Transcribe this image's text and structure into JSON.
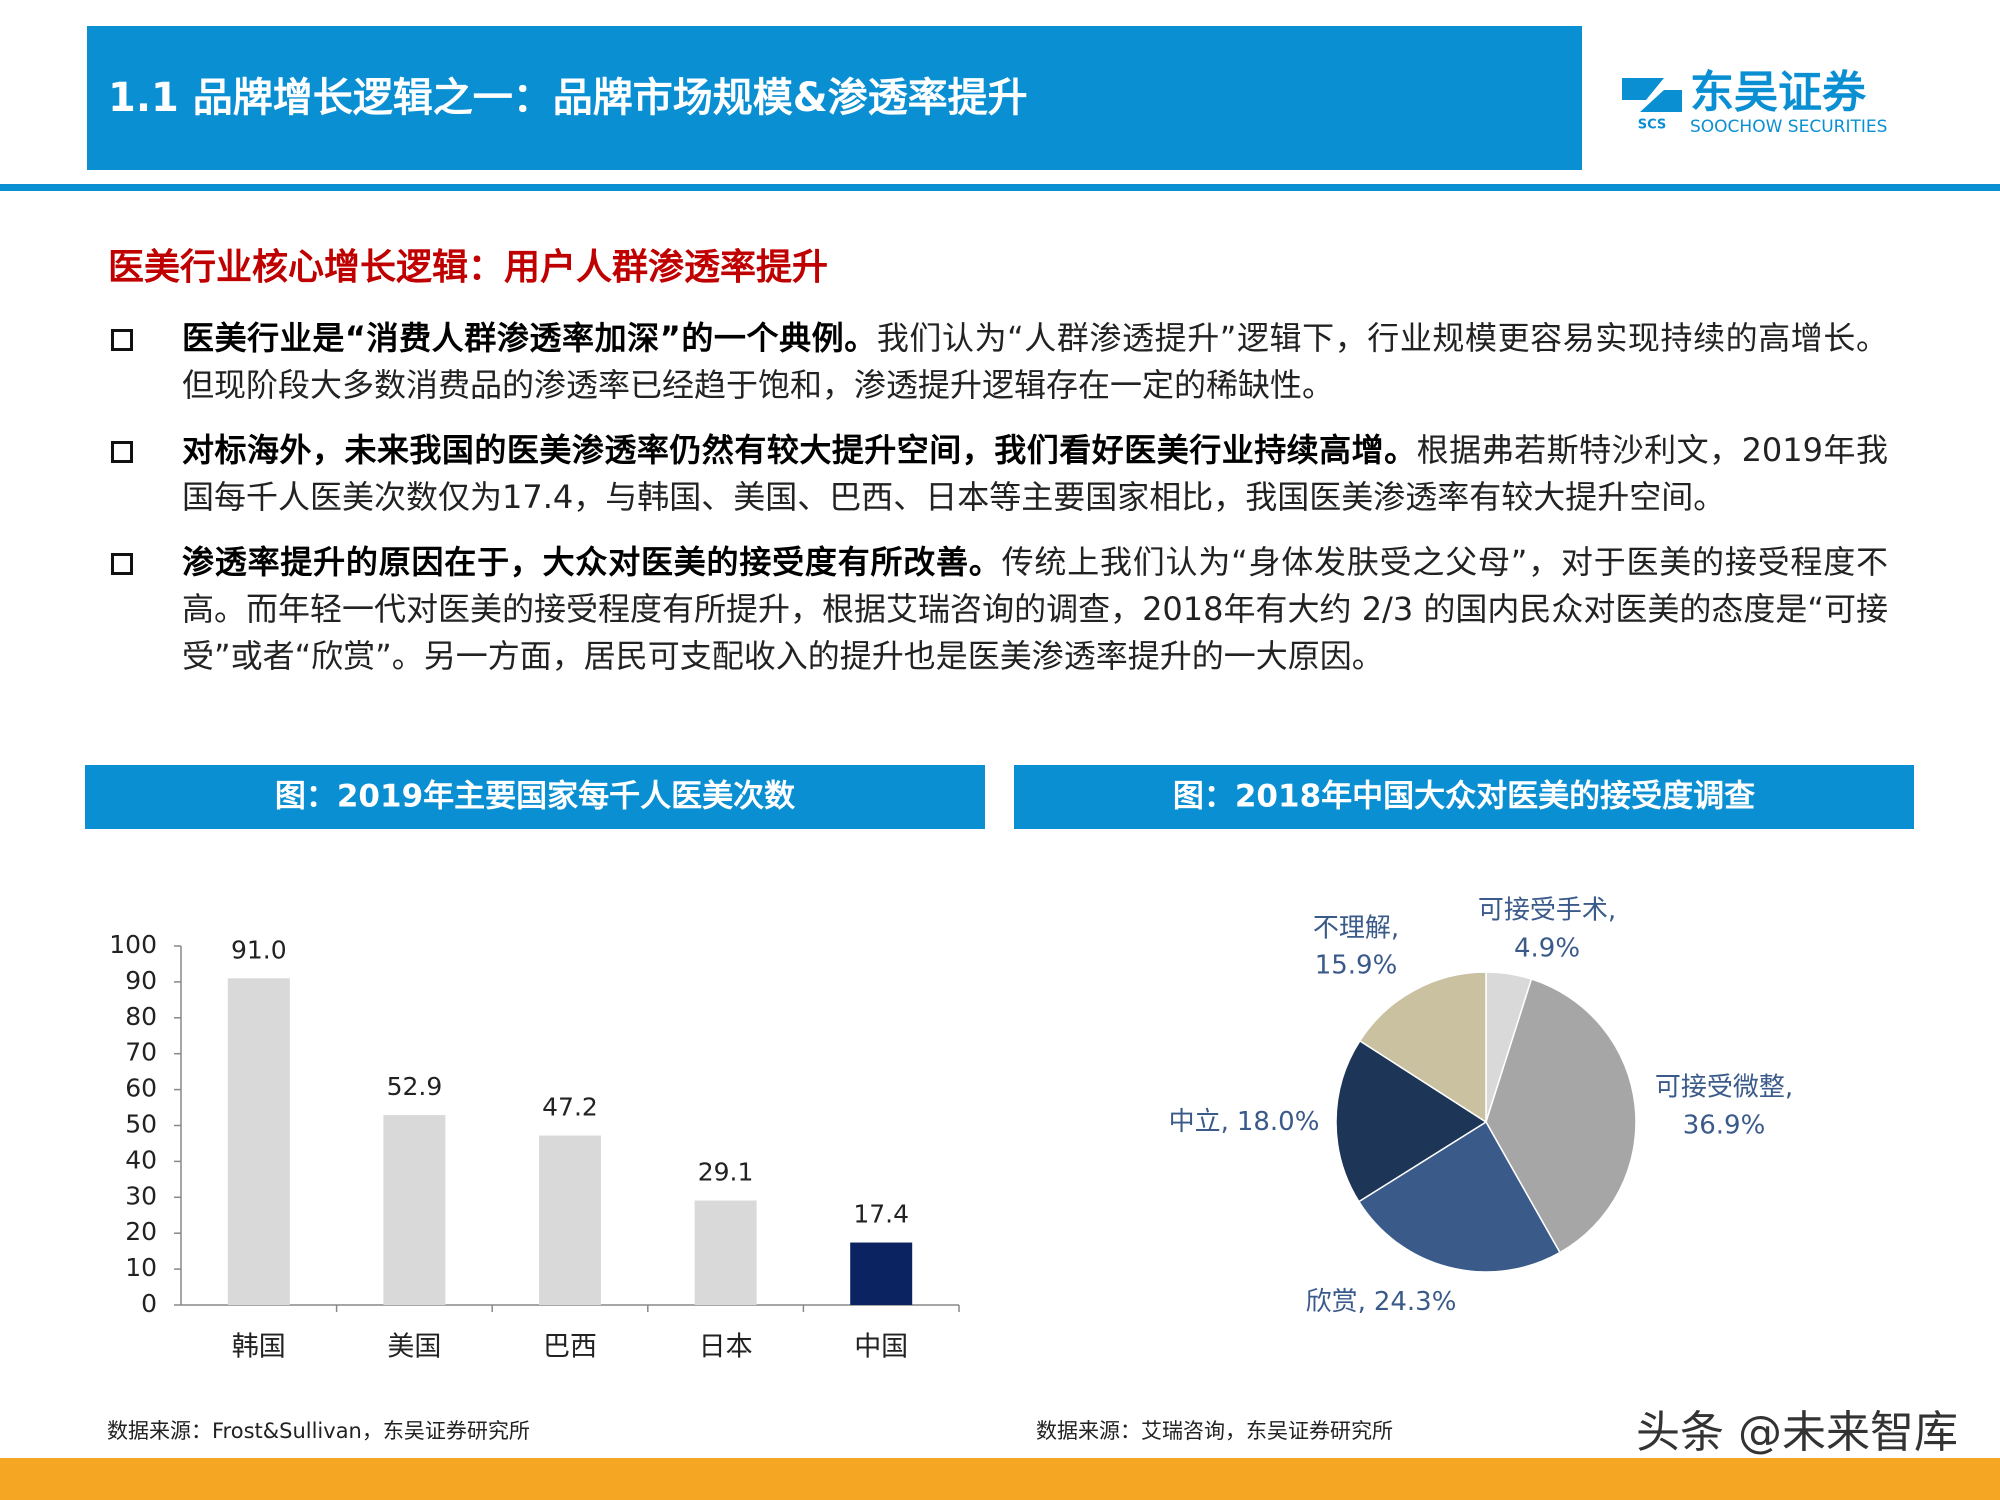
{
  "header": {
    "title": "1.1 品牌增长逻辑之一：品牌市场规模&渗透率提升",
    "logo_mark": "SCS",
    "logo_cn": "东吴证券",
    "logo_en": "SOOCHOW SECURITIES"
  },
  "section_title": "医美行业核心增长逻辑：用户人群渗透率提升",
  "bullets": [
    {
      "bold": "医美行业是“消费人群渗透率加深”的一个典例。",
      "text": "我们认为“人群渗透提升”逻辑下，行业规模更容易实现持续的高增长。但现阶段大多数消费品的渗透率已经趋于饱和，渗透提升逻辑存在一定的稀缺性。"
    },
    {
      "bold": "对标海外，未来我国的医美渗透率仍然有较大提升空间，我们看好医美行业持续高增。",
      "text": "根据弗若斯特沙利文，2019年我国每千人医美次数仅为17.4，与韩国、美国、巴西、日本等主要国家相比，我国医美渗透率有较大提升空间。"
    },
    {
      "bold": "渗透率提升的原因在于，大众对医美的接受度有所改善。",
      "text": "传统上我们认为“身体发肤受之父母”，对于医美的接受程度不高。而年轻一代对医美的接受程度有所提升，根据艾瑞咨询的调查，2018年有大约 2/3 的国内民众对医美的态度是“可接受”或者“欣赏”。另一方面，居民可支配收入的提升也是医美渗透率提升的一大原因。"
    }
  ],
  "chart_data": [
    {
      "type": "bar",
      "title": "图：2019年主要国家每千人医美次数",
      "categories": [
        "韩国",
        "美国",
        "巴西",
        "日本",
        "中国"
      ],
      "values": [
        91.0,
        52.9,
        47.2,
        29.1,
        17.4
      ],
      "value_labels": [
        "91.0",
        "52.9",
        "47.2",
        "29.1",
        "17.4"
      ],
      "colors": [
        "#d9d9d9",
        "#d9d9d9",
        "#d9d9d9",
        "#d9d9d9",
        "#0c2361"
      ],
      "ylim": [
        0,
        100
      ],
      "yticks": [
        0,
        10,
        20,
        30,
        40,
        50,
        60,
        70,
        80,
        90,
        100
      ],
      "grid": false,
      "source": "数据来源：Frost&Sullivan，东吴证券研究所"
    },
    {
      "type": "pie",
      "title": "图：2018年中国大众对医美的接受度调查",
      "categories": [
        "可接受手术,",
        "可接受微整,",
        "欣赏,",
        "中立,",
        "不理解,"
      ],
      "values": [
        4.9,
        36.9,
        24.3,
        18.0,
        15.9
      ],
      "value_labels": [
        "4.9%",
        "36.9%",
        "24.3%",
        "18.0%",
        "15.9%"
      ],
      "colors": [
        "#d9d9d9",
        "#a6a6a6",
        "#3a5a8a",
        "#1d3557",
        "#c9c1a0"
      ],
      "source": "数据来源：艾瑞咨询，东吴证券研究所"
    }
  ],
  "watermark": "头条 @未来智库"
}
